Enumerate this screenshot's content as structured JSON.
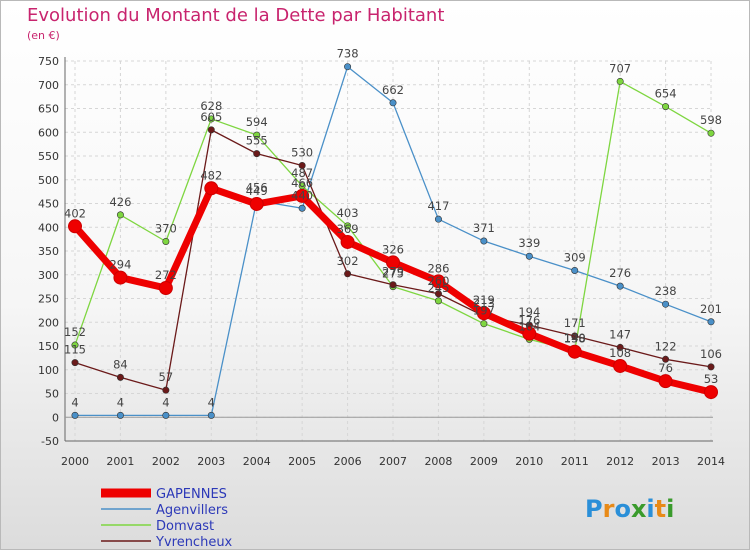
{
  "title": "Evolution du Montant de la Dette par Habitant",
  "unit": "(en €)",
  "logo": {
    "text": "Proxiti",
    "letters": [
      "P",
      "r",
      "o",
      "x",
      "i",
      "t",
      "i"
    ],
    "colors": [
      "#2a8fd8",
      "#e88a17",
      "#2a8fd8",
      "#3a9b2c",
      "#2a8fd8",
      "#e88a17",
      "#3a9b2c"
    ]
  },
  "chart_data": {
    "type": "line",
    "x": [
      "2000",
      "2001",
      "2002",
      "2003",
      "2004",
      "2005",
      "2006",
      "2007",
      "2008",
      "2009",
      "2010",
      "2011",
      "2012",
      "2013",
      "2014"
    ],
    "ylim": [
      -50,
      750
    ],
    "yticks": [
      -50,
      0,
      50,
      100,
      150,
      200,
      250,
      300,
      350,
      400,
      450,
      500,
      550,
      600,
      650,
      700,
      750
    ],
    "grid": true,
    "legend": "bottom-left",
    "series": [
      {
        "name": "GAPENNES",
        "color": "#ee0000",
        "values": [
          402,
          294,
          272,
          482,
          449,
          466,
          369,
          326,
          286,
          219,
          176,
          138,
          108,
          76,
          53
        ]
      },
      {
        "name": "Agenvillers",
        "color": "#4a90c8",
        "values": [
          4,
          4,
          4,
          4,
          456,
          440,
          738,
          662,
          417,
          371,
          339,
          309,
          276,
          238,
          201
        ]
      },
      {
        "name": "Domvast",
        "color": "#7ed640",
        "values": [
          152,
          426,
          370,
          628,
          594,
          487,
          403,
          275,
          245,
          197,
          164,
          140,
          707,
          654,
          598
        ]
      },
      {
        "name": "Yvrencheux",
        "color": "#6b1a1a",
        "values": [
          115,
          84,
          57,
          605,
          555,
          530,
          302,
          279,
          260,
          213,
          194,
          171,
          147,
          122,
          106
        ]
      }
    ]
  }
}
